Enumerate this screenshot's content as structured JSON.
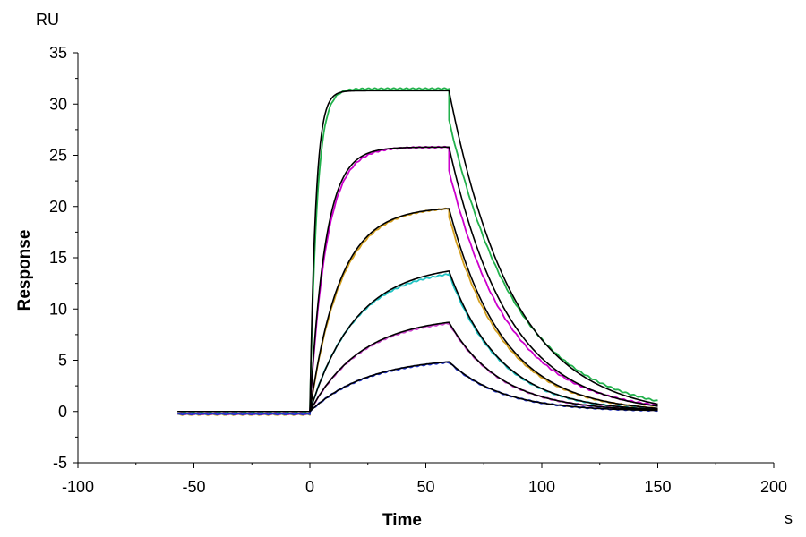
{
  "chart_data": {
    "type": "line",
    "title": "",
    "xlabel": "Time",
    "ylabel": "Response",
    "x_unit": "s",
    "y_unit": "RU",
    "xlim": [
      -100,
      200
    ],
    "ylim": [
      -5,
      35
    ],
    "x_ticks": [
      -100,
      -50,
      0,
      50,
      100,
      150,
      200
    ],
    "y_ticks": [
      -5,
      0,
      5,
      10,
      15,
      20,
      25,
      30,
      35
    ],
    "grid": false,
    "legend": "none",
    "injection": {
      "start": 0,
      "end": 60,
      "data_start": -57,
      "data_end": 150
    },
    "series": [
      {
        "color": "#22b14c",
        "kind": "data",
        "Req": 31.5,
        "kobs": 0.33,
        "kd": 0.034,
        "baseline": -0.15,
        "plateau_value": 31.5,
        "dissoc_start_value": 28.4,
        "end_value": 1.0
      },
      {
        "color": "#000000",
        "kind": "fit",
        "Req": 31.3,
        "kobs": 0.4,
        "kd": 0.036,
        "baseline": 0.0,
        "plateau_value": 31.3,
        "dissoc_start_value": 31.3,
        "end_value": 0.7
      },
      {
        "color": "#cc00cc",
        "kind": "data",
        "Req": 25.8,
        "kobs": 0.14,
        "kd": 0.039,
        "baseline": -0.25,
        "plateau_value": 25.8,
        "dissoc_start_value": 23.5,
        "end_value": 0.6
      },
      {
        "color": "#000000",
        "kind": "fit",
        "Req": 25.8,
        "kobs": 0.15,
        "kd": 0.039,
        "baseline": 0.0,
        "plateau_value": 25.8,
        "dissoc_start_value": 25.8,
        "end_value": 0.5
      },
      {
        "color": "#d4a020",
        "kind": "data",
        "Req": 19.9,
        "kobs": 0.075,
        "kd": 0.043,
        "baseline": -0.3,
        "plateau_value": 19.8,
        "dissoc_start_value": 19.0,
        "end_value": 0.3
      },
      {
        "color": "#000000",
        "kind": "fit",
        "Req": 19.9,
        "kobs": 0.078,
        "kd": 0.043,
        "baseline": 0.0,
        "plateau_value": 19.8,
        "dissoc_start_value": 19.8,
        "end_value": 0.3
      },
      {
        "color": "#22c4c4",
        "kind": "data",
        "Req": 13.8,
        "kobs": 0.052,
        "kd": 0.045,
        "baseline": -0.2,
        "plateau_value": 13.4,
        "dissoc_start_value": 13.4,
        "end_value": 0.2
      },
      {
        "color": "#000000",
        "kind": "fit",
        "Req": 14.1,
        "kobs": 0.05,
        "kd": 0.045,
        "baseline": 0.0,
        "plateau_value": 13.7,
        "dissoc_start_value": 13.7,
        "end_value": 0.2
      },
      {
        "color": "#cc44cc",
        "kind": "data",
        "Req": 9.1,
        "kobs": 0.045,
        "kd": 0.045,
        "baseline": -0.2,
        "plateau_value": 8.6,
        "dissoc_start_value": 8.6,
        "end_value": 0.15
      },
      {
        "color": "#000000",
        "kind": "fit",
        "Req": 9.2,
        "kobs": 0.045,
        "kd": 0.045,
        "baseline": 0.0,
        "plateau_value": 8.7,
        "dissoc_start_value": 8.7,
        "end_value": 0.15
      },
      {
        "color": "#2233cc",
        "kind": "data",
        "Req": 5.2,
        "kobs": 0.04,
        "kd": 0.044,
        "baseline": -0.25,
        "plateau_value": 4.8,
        "dissoc_start_value": 4.8,
        "end_value": 0.1
      },
      {
        "color": "#000000",
        "kind": "fit",
        "Req": 5.25,
        "kobs": 0.04,
        "kd": 0.044,
        "baseline": 0.0,
        "plateau_value": 4.85,
        "dissoc_start_value": 4.85,
        "end_value": 0.1
      }
    ]
  }
}
